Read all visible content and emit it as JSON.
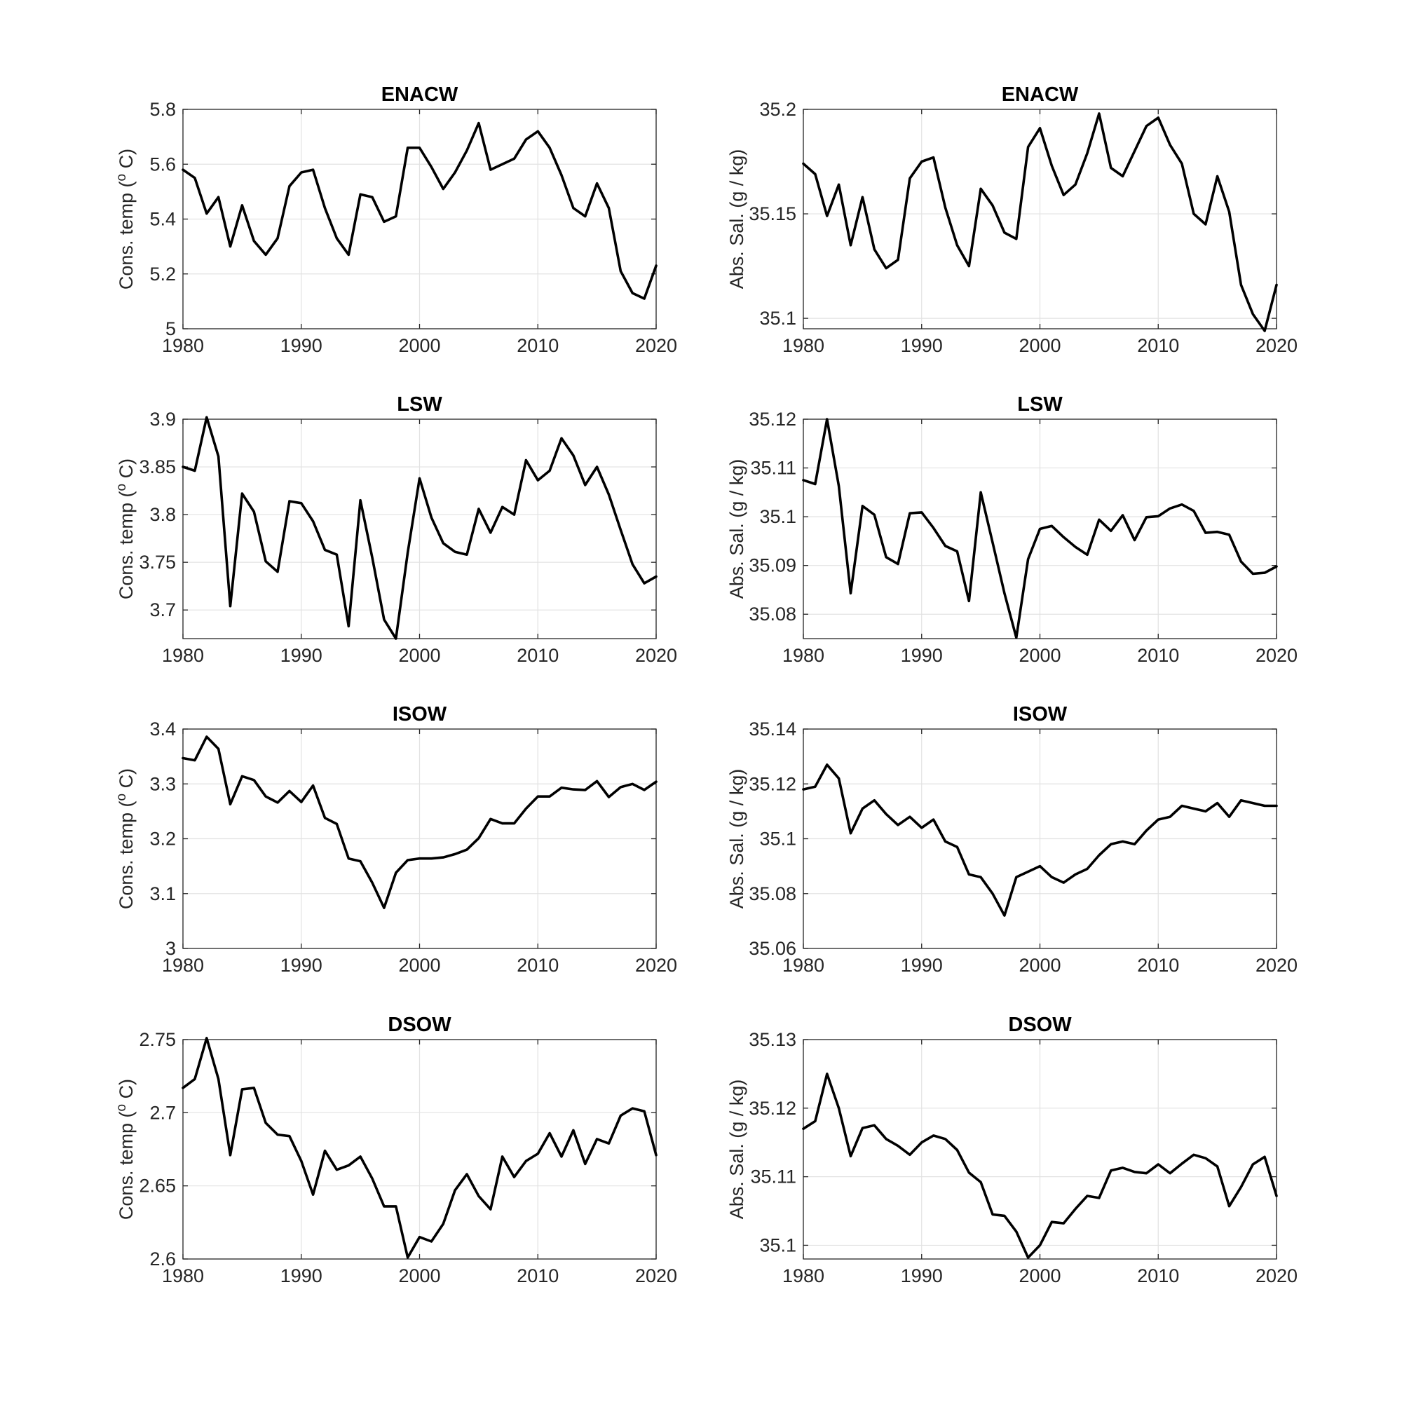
{
  "figure": {
    "background": "#ffffff",
    "line_color": "#000000",
    "grid_color": "#e2e2e2"
  },
  "chart_data": [
    {
      "type": "line",
      "title": "ENACW",
      "ylabel": "Cons. temp (o C)",
      "xlim": [
        1980,
        2020
      ],
      "ylim": [
        5,
        5.8
      ],
      "xticks": [
        "1980",
        "1990",
        "2000",
        "2010",
        "2020"
      ],
      "yticks": [
        "5",
        "5.2",
        "5.4",
        "5.6",
        "5.8"
      ],
      "yticks_values": [
        5,
        5.2,
        5.4,
        5.6,
        5.8
      ],
      "grid": true,
      "x": [
        1980,
        1981,
        1982,
        1983,
        1984,
        1985,
        1986,
        1987,
        1988,
        1989,
        1990,
        1991,
        1992,
        1993,
        1994,
        1995,
        1996,
        1997,
        1998,
        1999,
        2000,
        2001,
        2002,
        2003,
        2004,
        2005,
        2006,
        2007,
        2008,
        2009,
        2010,
        2011,
        2012,
        2013,
        2014,
        2015,
        2016,
        2017,
        2018,
        2019,
        2020
      ],
      "y": [
        5.58,
        5.55,
        5.42,
        5.48,
        5.3,
        5.45,
        5.32,
        5.27,
        5.33,
        5.52,
        5.57,
        5.58,
        5.44,
        5.33,
        5.27,
        5.49,
        5.48,
        5.39,
        5.41,
        5.66,
        5.66,
        5.59,
        5.51,
        5.57,
        5.65,
        5.75,
        5.58,
        5.6,
        5.62,
        5.69,
        5.72,
        5.66,
        5.56,
        5.44,
        5.41,
        5.53,
        5.44,
        5.21,
        5.13,
        5.11,
        5.23
      ]
    },
    {
      "type": "line",
      "title": "ENACW",
      "ylabel": "Abs. Sal. (g / kg)",
      "xlim": [
        1980,
        2020
      ],
      "ylim": [
        35.095,
        35.2
      ],
      "xticks": [
        "1980",
        "1990",
        "2000",
        "2010",
        "2020"
      ],
      "yticks": [
        "35.1",
        "35.15",
        "35.2"
      ],
      "yticks_values": [
        35.1,
        35.15,
        35.2
      ],
      "grid": true,
      "x": [
        1980,
        1981,
        1982,
        1983,
        1984,
        1985,
        1986,
        1987,
        1988,
        1989,
        1990,
        1991,
        1992,
        1993,
        1994,
        1995,
        1996,
        1997,
        1998,
        1999,
        2000,
        2001,
        2002,
        2003,
        2004,
        2005,
        2006,
        2007,
        2008,
        2009,
        2010,
        2011,
        2012,
        2013,
        2014,
        2015,
        2016,
        2017,
        2018,
        2019,
        2020
      ],
      "y": [
        35.174,
        35.169,
        35.149,
        35.164,
        35.135,
        35.158,
        35.133,
        35.124,
        35.128,
        35.167,
        35.175,
        35.177,
        35.153,
        35.135,
        35.125,
        35.162,
        35.154,
        35.141,
        35.138,
        35.182,
        35.191,
        35.173,
        35.159,
        35.164,
        35.179,
        35.198,
        35.172,
        35.168,
        35.18,
        35.192,
        35.196,
        35.183,
        35.174,
        35.15,
        35.145,
        35.168,
        35.151,
        35.116,
        35.102,
        35.094,
        35.116
      ]
    },
    {
      "type": "line",
      "title": "LSW",
      "ylabel": "Cons. temp (o C)",
      "xlim": [
        1980,
        2020
      ],
      "ylim": [
        3.67,
        3.9
      ],
      "xticks": [
        "1980",
        "1990",
        "2000",
        "2010",
        "2020"
      ],
      "yticks": [
        "3.7",
        "3.75",
        "3.8",
        "3.85",
        "3.9"
      ],
      "yticks_values": [
        3.7,
        3.75,
        3.8,
        3.85,
        3.9
      ],
      "grid": true,
      "x": [
        1980,
        1981,
        1982,
        1983,
        1984,
        1985,
        1986,
        1987,
        1988,
        1989,
        1990,
        1991,
        1992,
        1993,
        1994,
        1995,
        1996,
        1997,
        1998,
        1999,
        2000,
        2001,
        2002,
        2003,
        2004,
        2005,
        2006,
        2007,
        2008,
        2009,
        2010,
        2011,
        2012,
        2013,
        2014,
        2015,
        2016,
        2017,
        2018,
        2019,
        2020
      ],
      "y": [
        3.85,
        3.846,
        3.902,
        3.861,
        3.704,
        3.822,
        3.803,
        3.751,
        3.74,
        3.814,
        3.812,
        3.793,
        3.763,
        3.758,
        3.683,
        3.815,
        3.755,
        3.69,
        3.67,
        3.76,
        3.838,
        3.797,
        3.77,
        3.761,
        3.758,
        3.806,
        3.781,
        3.808,
        3.8,
        3.857,
        3.836,
        3.846,
        3.88,
        3.862,
        3.831,
        3.85,
        3.821,
        3.784,
        3.748,
        3.728,
        3.735
      ]
    },
    {
      "type": "line",
      "title": "LSW",
      "ylabel": "Abs. Sal. (g / kg)",
      "xlim": [
        1980,
        2020
      ],
      "ylim": [
        35.075,
        35.12
      ],
      "xticks": [
        "1980",
        "1990",
        "2000",
        "2010",
        "2020"
      ],
      "yticks": [
        "35.08",
        "35.09",
        "35.1",
        "35.11",
        "35.12"
      ],
      "yticks_values": [
        35.08,
        35.09,
        35.1,
        35.11,
        35.12
      ],
      "grid": true,
      "x": [
        1980,
        1981,
        1982,
        1983,
        1984,
        1985,
        1986,
        1987,
        1988,
        1989,
        1990,
        1991,
        1992,
        1993,
        1994,
        1995,
        1996,
        1997,
        1998,
        1999,
        2000,
        2001,
        2002,
        2003,
        2004,
        2005,
        2006,
        2007,
        2008,
        2009,
        2010,
        2011,
        2012,
        2013,
        2014,
        2015,
        2016,
        2017,
        2018,
        2019,
        2020
      ],
      "y": [
        35.1075,
        35.1067,
        35.12,
        35.1063,
        35.0843,
        35.1022,
        35.1004,
        35.0917,
        35.0903,
        35.1007,
        35.1009,
        35.0977,
        35.094,
        35.0929,
        35.0827,
        35.105,
        35.0947,
        35.0843,
        35.0752,
        35.0913,
        35.0975,
        35.0981,
        35.0958,
        35.0938,
        35.0922,
        35.0994,
        35.0971,
        35.1003,
        35.0952,
        35.0999,
        35.1001,
        35.1017,
        35.1025,
        35.1012,
        35.0967,
        35.0969,
        35.0963,
        35.0908,
        35.0883,
        35.0885,
        35.0898
      ]
    },
    {
      "type": "line",
      "title": "ISOW",
      "ylabel": "Cons. temp (o C)",
      "xlim": [
        1980,
        2020
      ],
      "ylim": [
        3,
        3.4
      ],
      "xticks": [
        "1980",
        "1990",
        "2000",
        "2010",
        "2020"
      ],
      "yticks": [
        "3",
        "3.1",
        "3.2",
        "3.3",
        "3.4"
      ],
      "yticks_values": [
        3,
        3.1,
        3.2,
        3.3,
        3.4
      ],
      "grid": true,
      "x": [
        1980,
        1981,
        1982,
        1983,
        1984,
        1985,
        1986,
        1987,
        1988,
        1989,
        1990,
        1991,
        1992,
        1993,
        1994,
        1995,
        1996,
        1997,
        1998,
        1999,
        2000,
        2001,
        2002,
        2003,
        2004,
        2005,
        2006,
        2007,
        2008,
        2009,
        2010,
        2011,
        2012,
        2013,
        2014,
        2015,
        2016,
        2017,
        2018,
        2019,
        2020
      ],
      "y": [
        3.347,
        3.343,
        3.386,
        3.364,
        3.263,
        3.314,
        3.307,
        3.277,
        3.266,
        3.287,
        3.267,
        3.297,
        3.238,
        3.227,
        3.164,
        3.159,
        3.12,
        3.074,
        3.138,
        3.161,
        3.164,
        3.164,
        3.166,
        3.172,
        3.18,
        3.201,
        3.236,
        3.228,
        3.228,
        3.255,
        3.277,
        3.277,
        3.293,
        3.29,
        3.289,
        3.305,
        3.276,
        3.294,
        3.3,
        3.289,
        3.304
      ]
    },
    {
      "type": "line",
      "title": "ISOW",
      "ylabel": "Abs. Sal. (g / kg)",
      "xlim": [
        1980,
        2020
      ],
      "ylim": [
        35.06,
        35.14
      ],
      "xticks": [
        "1980",
        "1990",
        "2000",
        "2010",
        "2020"
      ],
      "yticks": [
        "35.06",
        "35.08",
        "35.1",
        "35.12",
        "35.14"
      ],
      "yticks_values": [
        35.06,
        35.08,
        35.1,
        35.12,
        35.14
      ],
      "grid": true,
      "x": [
        1980,
        1981,
        1982,
        1983,
        1984,
        1985,
        1986,
        1987,
        1988,
        1989,
        1990,
        1991,
        1992,
        1993,
        1994,
        1995,
        1996,
        1997,
        1998,
        1999,
        2000,
        2001,
        2002,
        2003,
        2004,
        2005,
        2006,
        2007,
        2008,
        2009,
        2010,
        2011,
        2012,
        2013,
        2014,
        2015,
        2016,
        2017,
        2018,
        2019,
        2020
      ],
      "y": [
        35.118,
        35.119,
        35.127,
        35.122,
        35.102,
        35.111,
        35.114,
        35.109,
        35.105,
        35.108,
        35.104,
        35.107,
        35.099,
        35.097,
        35.087,
        35.086,
        35.08,
        35.072,
        35.086,
        35.088,
        35.09,
        35.086,
        35.084,
        35.087,
        35.089,
        35.094,
        35.098,
        35.099,
        35.098,
        35.103,
        35.107,
        35.108,
        35.112,
        35.111,
        35.11,
        35.113,
        35.108,
        35.114,
        35.113,
        35.112,
        35.112
      ]
    },
    {
      "type": "line",
      "title": "DSOW",
      "ylabel": "Cons. temp (o C)",
      "xlim": [
        1980,
        2020
      ],
      "ylim": [
        2.6,
        2.75
      ],
      "xticks": [
        "1980",
        "1990",
        "2000",
        "2010",
        "2020"
      ],
      "yticks": [
        "2.6",
        "2.65",
        "2.7",
        "2.75"
      ],
      "yticks_values": [
        2.6,
        2.65,
        2.7,
        2.75
      ],
      "grid": true,
      "x": [
        1980,
        1981,
        1982,
        1983,
        1984,
        1985,
        1986,
        1987,
        1988,
        1989,
        1990,
        1991,
        1992,
        1993,
        1994,
        1995,
        1996,
        1997,
        1998,
        1999,
        2000,
        2001,
        2002,
        2003,
        2004,
        2005,
        2006,
        2007,
        2008,
        2009,
        2010,
        2011,
        2012,
        2013,
        2014,
        2015,
        2016,
        2017,
        2018,
        2019,
        2020
      ],
      "y": [
        2.717,
        2.723,
        2.751,
        2.723,
        2.671,
        2.716,
        2.717,
        2.693,
        2.685,
        2.684,
        2.667,
        2.644,
        2.674,
        2.661,
        2.664,
        2.67,
        2.655,
        2.636,
        2.636,
        2.601,
        2.615,
        2.612,
        2.624,
        2.647,
        2.658,
        2.643,
        2.634,
        2.67,
        2.656,
        2.667,
        2.672,
        2.686,
        2.67,
        2.688,
        2.665,
        2.682,
        2.679,
        2.698,
        2.703,
        2.701,
        2.671
      ]
    },
    {
      "type": "line",
      "title": "DSOW",
      "ylabel": "Abs. Sal. (g / kg)",
      "xlim": [
        1980,
        2020
      ],
      "ylim": [
        35.098,
        35.13
      ],
      "xticks": [
        "1980",
        "1990",
        "2000",
        "2010",
        "2020"
      ],
      "yticks": [
        "35.1",
        "35.11",
        "35.12",
        "35.13"
      ],
      "yticks_values": [
        35.1,
        35.11,
        35.12,
        35.13
      ],
      "grid": true,
      "x": [
        1980,
        1981,
        1982,
        1983,
        1984,
        1985,
        1986,
        1987,
        1988,
        1989,
        1990,
        1991,
        1992,
        1993,
        1994,
        1995,
        1996,
        1997,
        1998,
        1999,
        2000,
        2001,
        2002,
        2003,
        2004,
        2005,
        2006,
        2007,
        2008,
        2009,
        2010,
        2011,
        2012,
        2013,
        2014,
        2015,
        2016,
        2017,
        2018,
        2019,
        2020
      ],
      "y": [
        35.117,
        35.1181,
        35.125,
        35.12,
        35.113,
        35.1171,
        35.1175,
        35.1155,
        35.1145,
        35.1132,
        35.115,
        35.116,
        35.1155,
        35.1139,
        35.1106,
        35.1092,
        35.1045,
        35.1043,
        35.102,
        35.0982,
        35.1,
        35.1034,
        35.1032,
        35.1053,
        35.1072,
        35.1069,
        35.1109,
        35.1113,
        35.1107,
        35.1105,
        35.1118,
        35.1105,
        35.1119,
        35.1132,
        35.1127,
        35.1115,
        35.1057,
        35.1085,
        35.1118,
        35.1129,
        35.1072
      ]
    }
  ]
}
